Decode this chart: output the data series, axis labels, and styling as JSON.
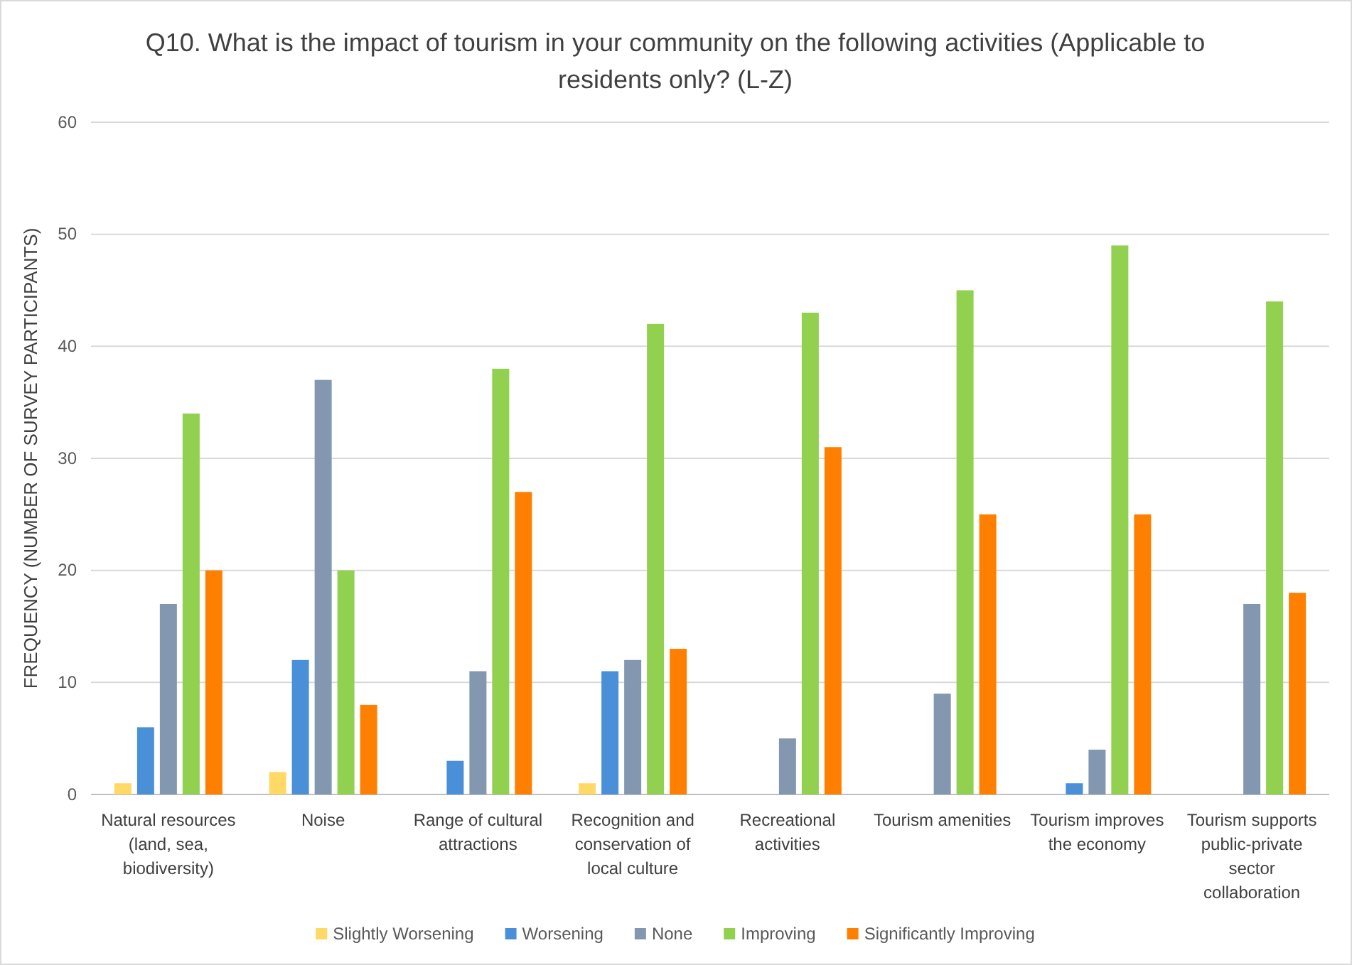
{
  "chart_data": {
    "type": "bar",
    "title": "Q10. What is the impact of tourism in your community on the following activities (Applicable to residents only? (L-Z)",
    "ylabel": "FREQUENCY (NUMBER OF SURVEY PARTICIPANTS)",
    "categories": [
      "Natural resources (land, sea, biodiversity)",
      "Noise",
      "Range of cultural attractions",
      "Recognition and conservation of local culture",
      "Recreational activities",
      "Tourism amenities",
      "Tourism improves the economy",
      "Tourism supports public-private sector collaboration"
    ],
    "series": [
      {
        "name": "Slightly Worsening",
        "color": "#ffd966",
        "values": [
          1,
          2,
          0,
          1,
          0,
          0,
          0,
          0
        ]
      },
      {
        "name": "Worsening",
        "color": "#4a90d9",
        "values": [
          6,
          12,
          3,
          11,
          0,
          0,
          1,
          0
        ]
      },
      {
        "name": "None",
        "color": "#8497b0",
        "values": [
          17,
          37,
          11,
          12,
          5,
          9,
          4,
          17
        ]
      },
      {
        "name": "Improving",
        "color": "#92d050",
        "values": [
          34,
          20,
          38,
          42,
          43,
          45,
          49,
          44
        ]
      },
      {
        "name": "Significantly Improving",
        "color": "#ff8000",
        "values": [
          20,
          8,
          27,
          13,
          31,
          25,
          25,
          18
        ]
      }
    ],
    "ylim": [
      0,
      60
    ],
    "yticks": [
      0,
      10,
      20,
      30,
      40,
      50,
      60
    ],
    "grid": "y",
    "legend": "bottom"
  }
}
